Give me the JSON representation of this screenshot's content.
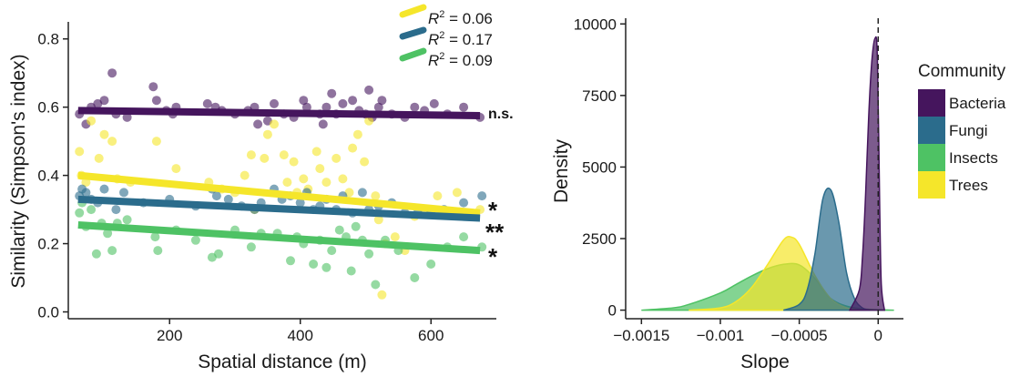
{
  "colors": {
    "Bacteria": "#45155d",
    "Fungi": "#2b6c8c",
    "Insects": "#4ec264",
    "Trees": "#f5e62a"
  },
  "chart_data": [
    {
      "type": "scatter",
      "xlabel": "Spatial distance (m)",
      "ylabel": "Similarity (Simpson's index)",
      "xlim": [
        45,
        700
      ],
      "ylim": [
        -0.02,
        0.85
      ],
      "xticks": [
        "200",
        "400",
        "600"
      ],
      "xtick_values": [
        200,
        400,
        600
      ],
      "yticks": [
        "0.0",
        "0.2",
        "0.4",
        "0.6",
        "0.8"
      ],
      "ytick_values": [
        0.0,
        0.2,
        0.4,
        0.6,
        0.8
      ],
      "r2_labels": [
        {
          "group": "Trees",
          "prefix": "R",
          "sup": "2",
          "text": " = 0.06"
        },
        {
          "group": "Fungi",
          "prefix": "R",
          "sup": "2",
          "text": " = 0.17"
        },
        {
          "group": "Insects",
          "prefix": "R",
          "sup": "2",
          "text": " = 0.09"
        }
      ],
      "significance": [
        {
          "group": "Bacteria",
          "label": "n.s."
        },
        {
          "group": "Trees",
          "label": "*"
        },
        {
          "group": "Fungi",
          "label": "**"
        },
        {
          "group": "Insects",
          "label": "*"
        }
      ],
      "trend_lines": [
        {
          "group": "Bacteria",
          "x": [
            60,
            675
          ],
          "y": [
            0.59,
            0.575
          ]
        },
        {
          "group": "Trees",
          "x": [
            60,
            675
          ],
          "y": [
            0.4,
            0.29
          ]
        },
        {
          "group": "Fungi",
          "x": [
            60,
            675
          ],
          "y": [
            0.33,
            0.275
          ]
        },
        {
          "group": "Insects",
          "x": [
            60,
            675
          ],
          "y": [
            0.255,
            0.18
          ]
        }
      ],
      "series": [
        {
          "group": "Bacteria",
          "points": [
            [
              62,
              0.58
            ],
            [
              72,
              0.55
            ],
            [
              80,
              0.6
            ],
            [
              90,
              0.61
            ],
            [
              100,
              0.62
            ],
            [
              112,
              0.7
            ],
            [
              118,
              0.58
            ],
            [
              135,
              0.57
            ],
            [
              175,
              0.66
            ],
            [
              180,
              0.62
            ],
            [
              195,
              0.59
            ],
            [
              205,
              0.58
            ],
            [
              210,
              0.6
            ],
            [
              258,
              0.61
            ],
            [
              270,
              0.6
            ],
            [
              280,
              0.59
            ],
            [
              300,
              0.58
            ],
            [
              320,
              0.59
            ],
            [
              330,
              0.6
            ],
            [
              335,
              0.55
            ],
            [
              350,
              0.56
            ],
            [
              360,
              0.61
            ],
            [
              375,
              0.58
            ],
            [
              390,
              0.57
            ],
            [
              405,
              0.62
            ],
            [
              410,
              0.6
            ],
            [
              430,
              0.58
            ],
            [
              435,
              0.55
            ],
            [
              440,
              0.6
            ],
            [
              448,
              0.64
            ],
            [
              455,
              0.58
            ],
            [
              465,
              0.61
            ],
            [
              480,
              0.62
            ],
            [
              490,
              0.59
            ],
            [
              500,
              0.58
            ],
            [
              505,
              0.65
            ],
            [
              510,
              0.57
            ],
            [
              520,
              0.6
            ],
            [
              525,
              0.62
            ],
            [
              540,
              0.58
            ],
            [
              560,
              0.57
            ],
            [
              575,
              0.6
            ],
            [
              590,
              0.59
            ],
            [
              605,
              0.61
            ],
            [
              625,
              0.58
            ],
            [
              650,
              0.6
            ],
            [
              675,
              0.57
            ]
          ]
        },
        {
          "group": "Trees",
          "points": [
            [
              62,
              0.47
            ],
            [
              65,
              0.4
            ],
            [
              72,
              0.38
            ],
            [
              80,
              0.56
            ],
            [
              92,
              0.45
            ],
            [
              100,
              0.52
            ],
            [
              112,
              0.5
            ],
            [
              120,
              0.39
            ],
            [
              140,
              0.38
            ],
            [
              180,
              0.5
            ],
            [
              210,
              0.42
            ],
            [
              260,
              0.38
            ],
            [
              280,
              0.36
            ],
            [
              300,
              0.35
            ],
            [
              315,
              0.4
            ],
            [
              325,
              0.46
            ],
            [
              330,
              0.3
            ],
            [
              345,
              0.45
            ],
            [
              350,
              0.52
            ],
            [
              360,
              0.55
            ],
            [
              375,
              0.46
            ],
            [
              380,
              0.38
            ],
            [
              390,
              0.44
            ],
            [
              395,
              0.35
            ],
            [
              405,
              0.39
            ],
            [
              412,
              0.36
            ],
            [
              425,
              0.47
            ],
            [
              430,
              0.42
            ],
            [
              440,
              0.38
            ],
            [
              455,
              0.45
            ],
            [
              465,
              0.39
            ],
            [
              475,
              0.35
            ],
            [
              480,
              0.48
            ],
            [
              488,
              0.52
            ],
            [
              498,
              0.44
            ],
            [
              505,
              0.56
            ],
            [
              515,
              0.34
            ],
            [
              520,
              0.27
            ],
            [
              525,
              0.05
            ],
            [
              530,
              0.2
            ],
            [
              545,
              0.22
            ],
            [
              560,
              0.18
            ],
            [
              575,
              0.28
            ],
            [
              590,
              0.3
            ],
            [
              610,
              0.34
            ],
            [
              640,
              0.35
            ],
            [
              675,
              0.3
            ]
          ]
        },
        {
          "group": "Fungi",
          "points": [
            [
              62,
              0.34
            ],
            [
              66,
              0.36
            ],
            [
              72,
              0.35
            ],
            [
              80,
              0.33
            ],
            [
              90,
              0.32
            ],
            [
              100,
              0.36
            ],
            [
              118,
              0.3
            ],
            [
              130,
              0.35
            ],
            [
              160,
              0.32
            ],
            [
              200,
              0.33
            ],
            [
              240,
              0.31
            ],
            [
              265,
              0.36
            ],
            [
              272,
              0.34
            ],
            [
              290,
              0.33
            ],
            [
              310,
              0.31
            ],
            [
              330,
              0.3
            ],
            [
              340,
              0.32
            ],
            [
              360,
              0.36
            ],
            [
              372,
              0.33
            ],
            [
              385,
              0.34
            ],
            [
              400,
              0.32
            ],
            [
              410,
              0.35
            ],
            [
              420,
              0.3
            ],
            [
              430,
              0.31
            ],
            [
              440,
              0.33
            ],
            [
              455,
              0.3
            ],
            [
              465,
              0.34
            ],
            [
              480,
              0.29
            ],
            [
              495,
              0.35
            ],
            [
              505,
              0.3
            ],
            [
              520,
              0.31
            ],
            [
              540,
              0.32
            ],
            [
              560,
              0.29
            ],
            [
              580,
              0.3
            ],
            [
              600,
              0.29
            ],
            [
              620,
              0.3
            ],
            [
              650,
              0.32
            ],
            [
              678,
              0.34
            ]
          ]
        },
        {
          "group": "Insects",
          "points": [
            [
              62,
              0.29
            ],
            [
              66,
              0.32
            ],
            [
              72,
              0.25
            ],
            [
              80,
              0.3
            ],
            [
              88,
              0.17
            ],
            [
              96,
              0.26
            ],
            [
              105,
              0.23
            ],
            [
              112,
              0.18
            ],
            [
              120,
              0.26
            ],
            [
              135,
              0.27
            ],
            [
              178,
              0.22
            ],
            [
              182,
              0.18
            ],
            [
              210,
              0.24
            ],
            [
              240,
              0.21
            ],
            [
              265,
              0.16
            ],
            [
              275,
              0.17
            ],
            [
              300,
              0.24
            ],
            [
              325,
              0.19
            ],
            [
              340,
              0.23
            ],
            [
              365,
              0.23
            ],
            [
              385,
              0.15
            ],
            [
              395,
              0.22
            ],
            [
              405,
              0.2
            ],
            [
              420,
              0.14
            ],
            [
              430,
              0.21
            ],
            [
              440,
              0.13
            ],
            [
              448,
              0.18
            ],
            [
              460,
              0.24
            ],
            [
              470,
              0.22
            ],
            [
              478,
              0.12
            ],
            [
              485,
              0.25
            ],
            [
              495,
              0.21
            ],
            [
              505,
              0.17
            ],
            [
              515,
              0.08
            ],
            [
              530,
              0.21
            ],
            [
              550,
              0.18
            ],
            [
              575,
              0.1
            ],
            [
              600,
              0.14
            ],
            [
              625,
              0.19
            ],
            [
              650,
              0.22
            ],
            [
              678,
              0.19
            ]
          ]
        }
      ]
    },
    {
      "type": "area",
      "xlabel": "Slope",
      "ylabel": "Density",
      "xlim": [
        -0.0016,
        0.00016
      ],
      "ylim": [
        -300,
        10200
      ],
      "xticks": [
        "−0.0015",
        "−0.001",
        "−0.0005",
        "0"
      ],
      "xtick_values": [
        -0.0015,
        -0.001,
        -0.0005,
        0
      ],
      "yticks": [
        "0",
        "2500",
        "5000",
        "7500",
        "10000"
      ],
      "ytick_values": [
        0,
        2500,
        5000,
        7500,
        10000
      ],
      "legend_title": "Community",
      "legend": [
        "Bacteria",
        "Fungi",
        "Insects",
        "Trees"
      ],
      "legend_position": "right",
      "reference_line_x": 0,
      "series": [
        {
          "name": "Insects",
          "x": [
            -0.0015,
            -0.0013,
            -0.0012,
            -0.001,
            -0.0009,
            -0.0008,
            -0.0007,
            -0.0006,
            -0.0005,
            -0.0004,
            -0.0003,
            -0.00015,
            0.0001
          ],
          "y": [
            0,
            80,
            200,
            600,
            900,
            1200,
            1450,
            1600,
            1580,
            1100,
            400,
            80,
            0
          ]
        },
        {
          "name": "Trees",
          "x": [
            -0.0012,
            -0.001,
            -0.0009,
            -0.0008,
            -0.0007,
            -0.0006,
            -0.00055,
            -0.0005,
            -0.0004,
            -0.0003,
            -0.0002,
            -0.00012
          ],
          "y": [
            0,
            80,
            300,
            800,
            1600,
            2450,
            2550,
            2300,
            1200,
            400,
            80,
            0
          ]
        },
        {
          "name": "Fungi",
          "x": [
            -0.0006,
            -0.0005,
            -0.00045,
            -0.0004,
            -0.00035,
            -0.0003,
            -0.00025,
            -0.0002,
            -0.00015,
            -0.0001,
            -5e-05
          ],
          "y": [
            0,
            200,
            700,
            2000,
            3900,
            4200,
            3100,
            1300,
            400,
            80,
            0
          ]
        },
        {
          "name": "Bacteria",
          "x": [
            -0.00018,
            -0.00012,
            -0.0001,
            -8e-05,
            -6e-05,
            -4e-05,
            -2e-05,
            -5e-06,
            1e-05,
            2e-05,
            4e-05
          ],
          "y": [
            0,
            700,
            1800,
            4000,
            6800,
            8700,
            9500,
            8800,
            3500,
            900,
            0
          ]
        }
      ]
    }
  ]
}
